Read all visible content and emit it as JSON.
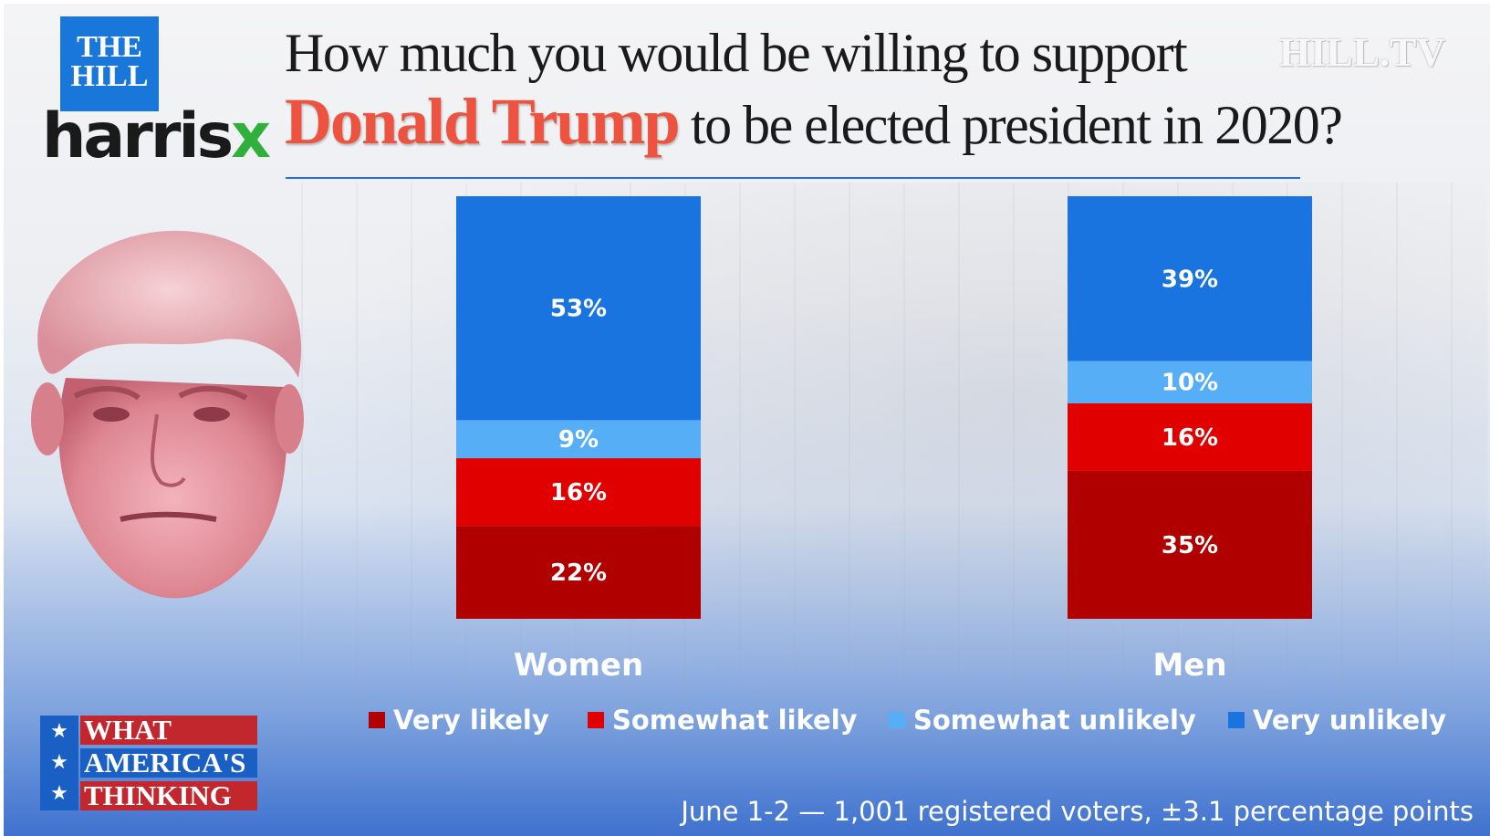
{
  "branding": {
    "hill_logo_line1": "THE",
    "hill_logo_line2": "HILL",
    "harrisx_text": "harris",
    "harrisx_accent": "x",
    "hilltv": "HILL.TV",
    "what_line1": "WHAT",
    "what_line2": "AMERICA'S",
    "what_line3": "THINKING"
  },
  "title": {
    "line1": "How much you would be willing to support",
    "name": "Donald Trump",
    "line2_rest": " to be elected president in 2020?"
  },
  "footer": "June 1-2 — 1,001 registered voters, ±3.1 percentage points",
  "colors": {
    "very_likely": "#b00000",
    "somewhat_likely": "#e00000",
    "somewhat_unlikely": "#56aef6",
    "very_unlikely": "#1a74e0",
    "title_name": "#ee5340"
  },
  "legend": [
    {
      "label": "Very likely",
      "color": "#b00000"
    },
    {
      "label": "Somewhat likely",
      "color": "#e00000"
    },
    {
      "label": "Somewhat unlikely",
      "color": "#56aef6"
    },
    {
      "label": "Very unlikely",
      "color": "#1a74e0"
    }
  ],
  "chart_data": {
    "type": "bar",
    "stacked": true,
    "categories": [
      "Women",
      "Men"
    ],
    "series": [
      {
        "name": "Very likely",
        "values": [
          22,
          35
        ],
        "color": "#b00000"
      },
      {
        "name": "Somewhat likely",
        "values": [
          16,
          16
        ],
        "color": "#e00000"
      },
      {
        "name": "Somewhat unlikely",
        "values": [
          9,
          10
        ],
        "color": "#56aef6"
      },
      {
        "name": "Very unlikely",
        "values": [
          53,
          39
        ],
        "color": "#1a74e0"
      }
    ],
    "data_labels": [
      [
        "22%",
        "16%",
        "9%",
        "53%"
      ],
      [
        "35%",
        "16%",
        "10%",
        "39%"
      ]
    ],
    "ylim": [
      0,
      100
    ],
    "legend_position": "bottom",
    "grid": false
  }
}
